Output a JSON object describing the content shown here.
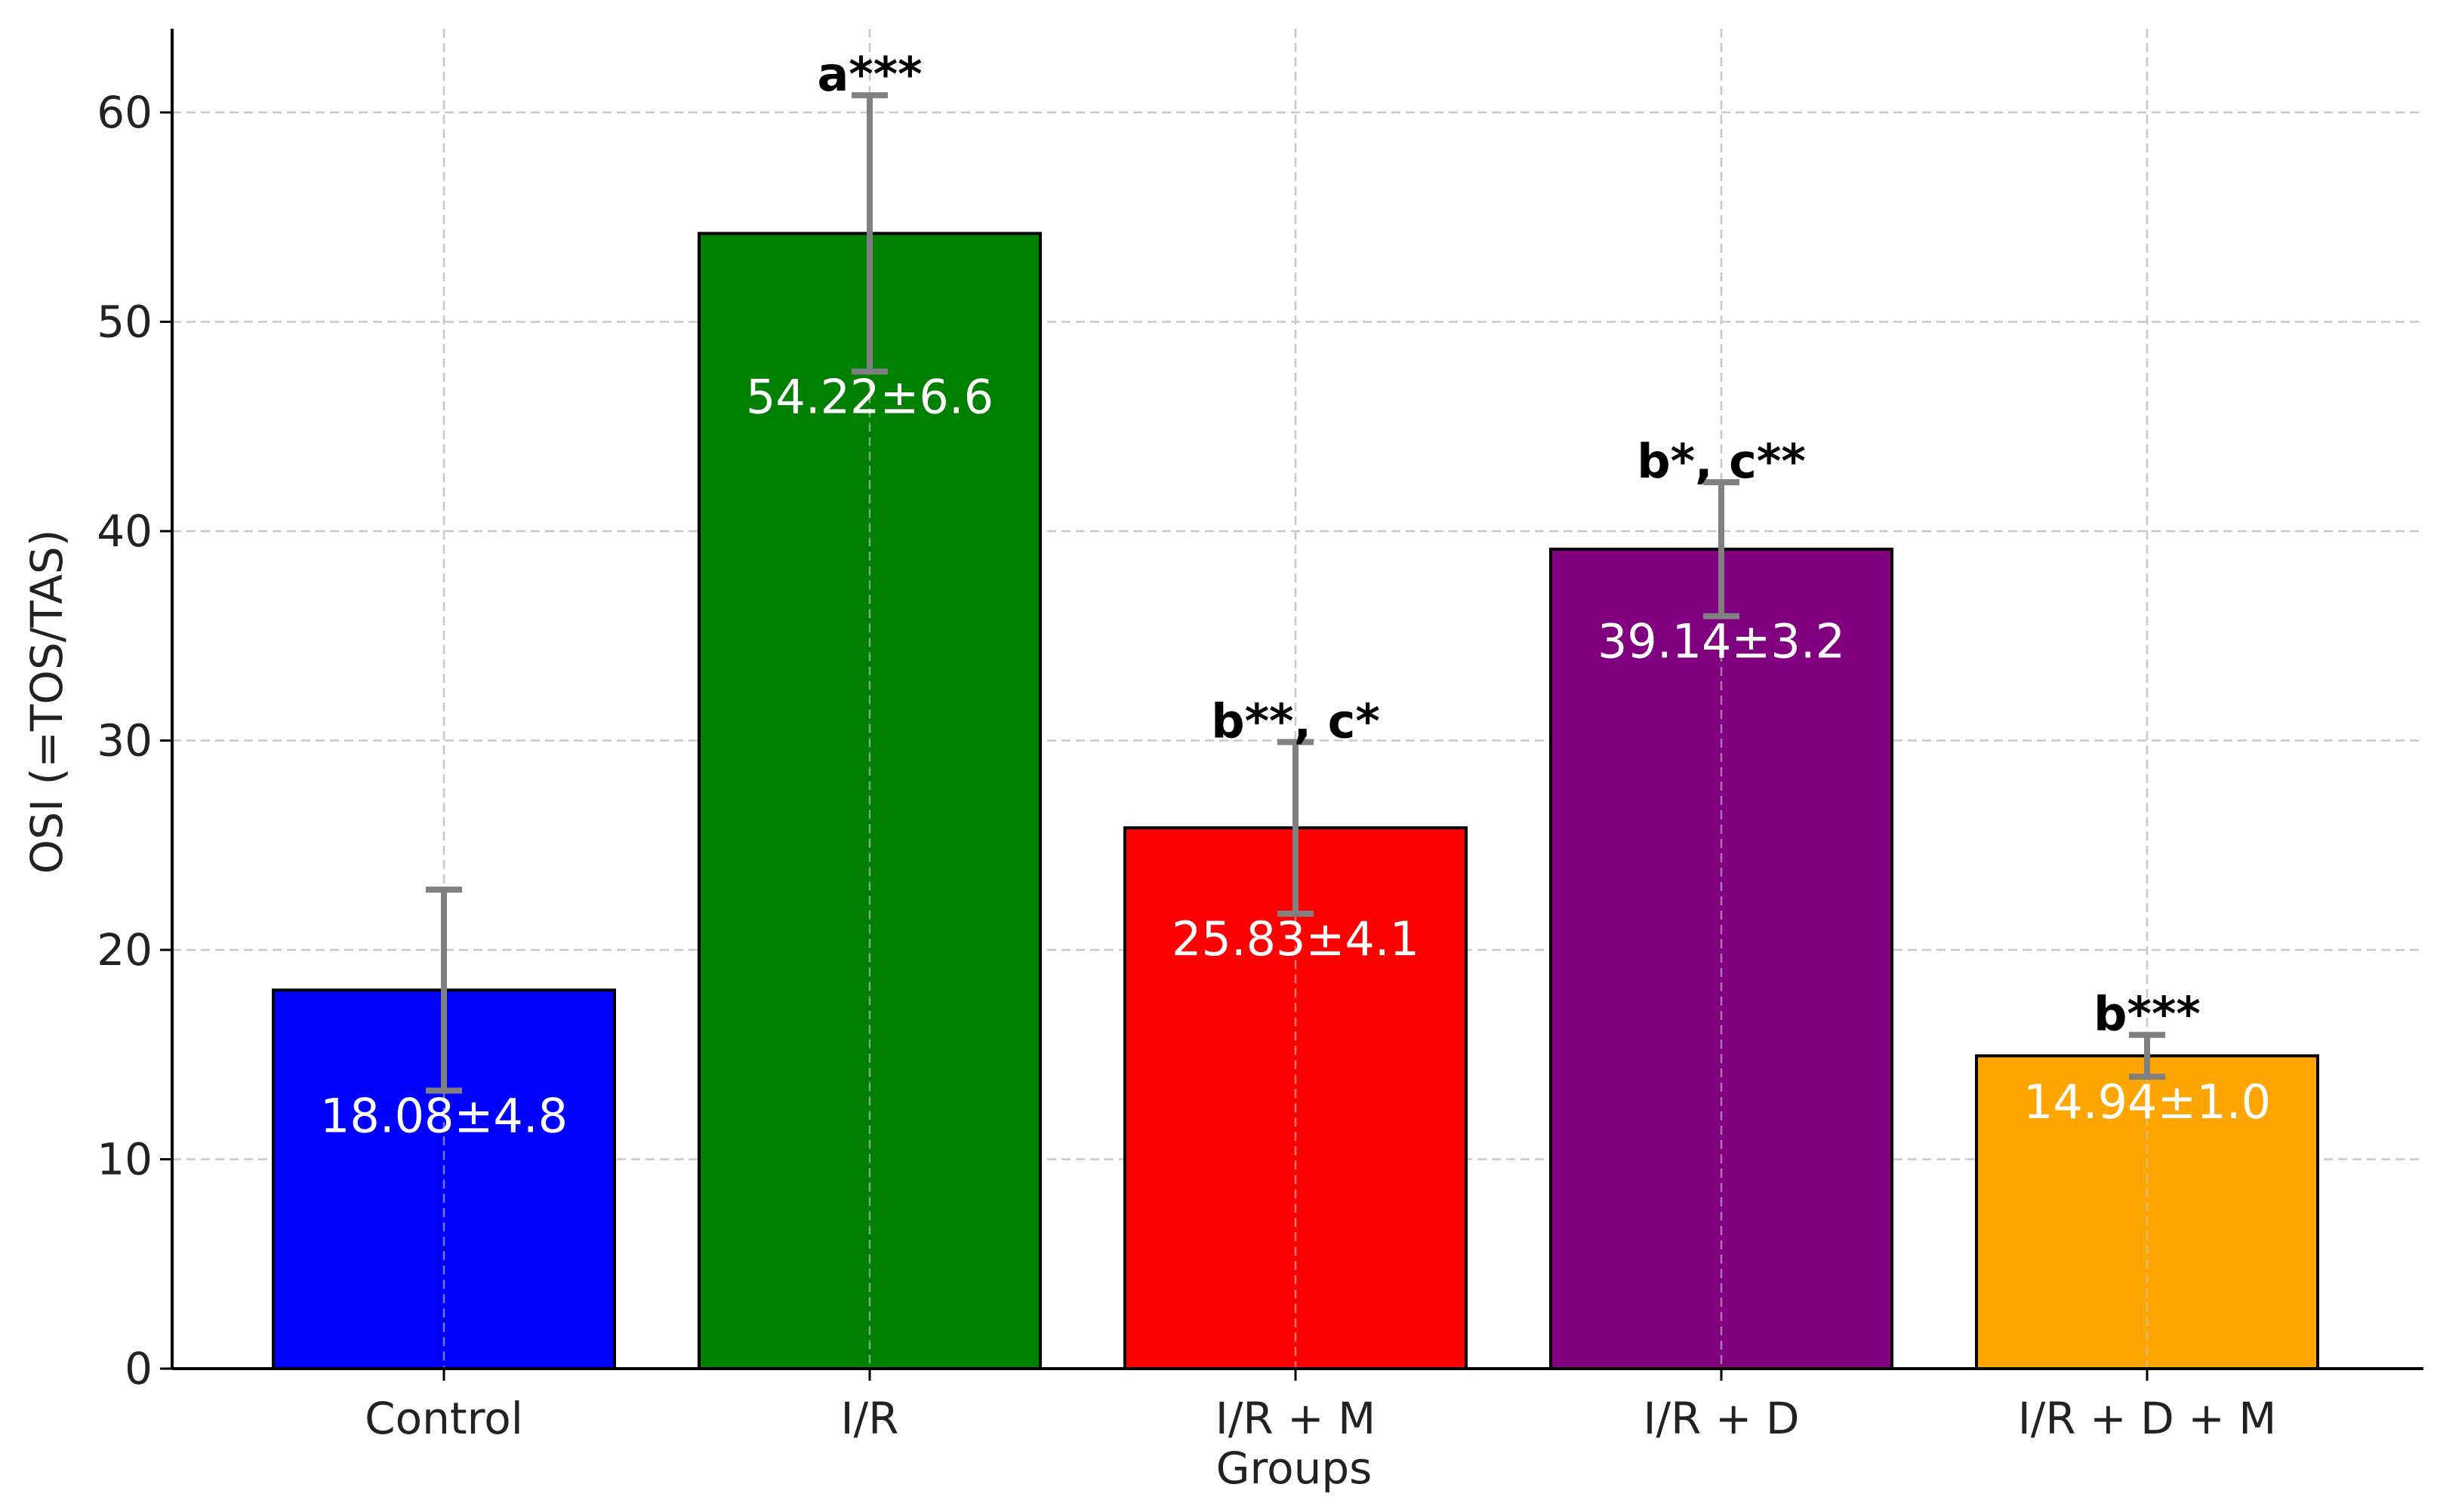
{
  "chart_data": {
    "type": "bar",
    "title": "",
    "xlabel": "Groups",
    "ylabel": "OSI (=TOS/TAS)",
    "categories": [
      "Control",
      "I/R",
      "I/R + M",
      "I/R + D",
      "I/R + D + M"
    ],
    "values": [
      18.08,
      54.22,
      25.83,
      39.14,
      14.94
    ],
    "errors": [
      4.8,
      6.6,
      4.1,
      3.2,
      1.0
    ],
    "value_labels": [
      "18.08±4.8",
      "54.22±6.6",
      "25.83±4.1",
      "39.14±3.2",
      "14.94±1.0"
    ],
    "significance_labels": [
      "",
      "a***",
      "b**, c*",
      "b*, c**",
      "b***"
    ],
    "colors": [
      "#0000ff",
      "#008000",
      "#ff0000",
      "#800080",
      "#ffa500"
    ],
    "error_bar_color": "#808080",
    "ylim": [
      0,
      64
    ],
    "yticks": [
      0,
      10,
      20,
      30,
      40,
      50,
      60
    ],
    "grid": true
  }
}
